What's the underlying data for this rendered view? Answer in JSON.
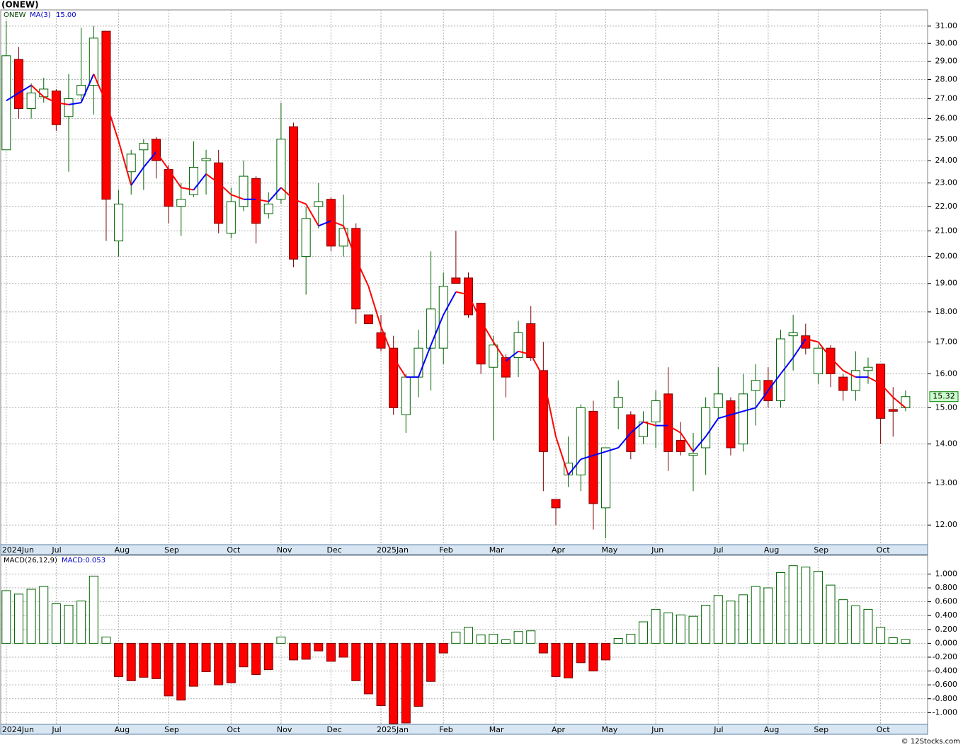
{
  "chart_data": [
    {
      "type": "candlestick",
      "title": "(ONEW)",
      "symbol": "ONEW",
      "categories": [
        "2024Jun",
        null,
        null,
        null,
        "Jul",
        null,
        null,
        null,
        null,
        "Aug",
        null,
        null,
        null,
        "Sep",
        null,
        null,
        null,
        null,
        "Oct",
        null,
        null,
        null,
        "Nov",
        null,
        null,
        null,
        "Dec",
        null,
        null,
        null,
        "2025Jan",
        null,
        null,
        null,
        null,
        "Feb",
        null,
        null,
        null,
        "Mar",
        null,
        null,
        null,
        null,
        "Apr",
        null,
        null,
        null,
        "May",
        null,
        null,
        null,
        "Jun",
        null,
        null,
        null,
        null,
        "Jul",
        null,
        null,
        null,
        "Aug",
        null,
        null,
        null,
        "Sep",
        null,
        null,
        null,
        null,
        "Oct",
        null,
        null
      ],
      "open": [
        24.5,
        29.1,
        26.5,
        27.1,
        27.4,
        26.1,
        27.2,
        27.7,
        30.7,
        20.6,
        23.5,
        24.5,
        25.0,
        23.6,
        22.0,
        22.5,
        24.0,
        23.9,
        20.9,
        22.0,
        23.2,
        21.7,
        22.3,
        25.6,
        20.0,
        22.0,
        22.3,
        20.4,
        21.1,
        17.9,
        17.3,
        16.8,
        14.8,
        15.9,
        16.8,
        16.8,
        19.2,
        19.2,
        18.3,
        16.2,
        16.5,
        16.5,
        17.6,
        16.1,
        12.6,
        13.2,
        13.2,
        14.9,
        12.4,
        15.0,
        14.8,
        14.2,
        14.6,
        15.4,
        14.1,
        13.7,
        13.9,
        15.0,
        15.2,
        14.0,
        15.5,
        15.8,
        15.2,
        17.2,
        17.2,
        16.0,
        16.8,
        15.9,
        15.5,
        16.1,
        16.3,
        14.95,
        15.0
      ],
      "high": [
        31.3,
        29.8,
        27.8,
        28.1,
        27.5,
        28.3,
        30.9,
        31.0,
        30.7,
        22.7,
        24.5,
        25.0,
        25.1,
        23.8,
        23.0,
        24.9,
        24.5,
        24.5,
        22.8,
        24.0,
        23.3,
        22.6,
        26.8,
        25.8,
        22.0,
        23.0,
        22.4,
        22.5,
        21.3,
        17.9,
        17.9,
        17.2,
        16.0,
        17.4,
        20.2,
        19.4,
        21.0,
        19.4,
        18.3,
        17.2,
        16.6,
        17.7,
        18.2,
        17.0,
        12.6,
        14.2,
        15.1,
        15.2,
        13.9,
        15.8,
        14.9,
        14.9,
        15.5,
        16.2,
        14.6,
        14.3,
        15.3,
        16.2,
        15.3,
        16.0,
        16.3,
        16.2,
        17.4,
        17.9,
        17.6,
        16.9,
        16.9,
        16.0,
        16.7,
        16.5,
        16.3,
        15.6,
        15.5
      ],
      "low": [
        24.5,
        26.0,
        26.0,
        26.8,
        25.4,
        23.5,
        26.9,
        26.2,
        20.6,
        20.0,
        22.5,
        22.7,
        23.2,
        21.3,
        20.8,
        22.4,
        22.5,
        20.9,
        20.7,
        21.8,
        20.5,
        21.5,
        22.1,
        19.6,
        18.6,
        21.1,
        20.2,
        20.0,
        17.6,
        17.6,
        16.7,
        14.8,
        14.3,
        15.3,
        15.5,
        16.3,
        19.0,
        17.8,
        16.0,
        14.1,
        15.3,
        15.9,
        16.4,
        12.8,
        12.0,
        12.9,
        12.8,
        11.9,
        11.7,
        14.4,
        13.6,
        14.0,
        13.9,
        13.3,
        13.7,
        12.8,
        13.2,
        14.7,
        13.7,
        13.8,
        14.5,
        15.0,
        15.0,
        16.1,
        16.6,
        15.7,
        15.6,
        15.2,
        15.2,
        15.7,
        14.0,
        14.2,
        14.9
      ],
      "close": [
        29.3,
        26.5,
        27.3,
        27.5,
        25.7,
        27.0,
        27.7,
        30.3,
        22.3,
        22.1,
        24.3,
        24.8,
        24.0,
        22.0,
        22.3,
        23.7,
        24.1,
        21.3,
        22.2,
        23.3,
        21.3,
        22.1,
        25.0,
        19.9,
        21.5,
        22.2,
        20.4,
        21.1,
        18.1,
        17.6,
        16.8,
        15.0,
        15.9,
        16.8,
        18.1,
        18.9,
        19.0,
        17.9,
        16.3,
        16.9,
        15.9,
        17.3,
        16.5,
        13.8,
        12.4,
        13.5,
        15.0,
        12.5,
        13.9,
        15.3,
        13.8,
        14.6,
        15.2,
        13.8,
        13.8,
        13.75,
        15.0,
        15.4,
        13.9,
        15.4,
        15.8,
        15.2,
        17.1,
        17.3,
        16.8,
        16.8,
        16.0,
        15.5,
        16.1,
        16.2,
        14.7,
        14.9,
        15.32
      ],
      "last_close_label": "15.32",
      "up_color": "#ffffff",
      "up_edge": "#006400",
      "down_color": "#ff0000",
      "down_edge": "#7a0000",
      "series": [
        {
          "name": "MA(3)",
          "last_value_label": "15.00",
          "up_color": "#0000ff",
          "down_color": "#ff0000",
          "values": [
            26.9,
            27.3,
            27.7,
            27.1,
            26.8,
            26.7,
            26.8,
            28.3,
            26.8,
            24.9,
            22.9,
            23.7,
            24.4,
            23.6,
            22.8,
            22.7,
            23.4,
            23.0,
            22.5,
            22.3,
            22.3,
            22.2,
            22.8,
            22.3,
            22.1,
            21.2,
            21.4,
            21.2,
            19.9,
            18.9,
            17.5,
            16.5,
            15.9,
            15.9,
            16.9,
            17.9,
            18.7,
            18.6,
            17.7,
            17.0,
            16.4,
            16.7,
            16.6,
            15.9,
            14.2,
            13.2,
            13.6,
            13.7,
            13.8,
            13.9,
            14.3,
            14.6,
            14.5,
            14.5,
            14.3,
            13.8,
            14.2,
            14.7,
            14.8,
            14.9,
            15.0,
            15.5,
            16.0,
            16.5,
            17.1,
            17.0,
            16.5,
            16.1,
            15.9,
            15.9,
            15.7,
            15.3,
            15.0
          ]
        }
      ],
      "ylog": true,
      "ylim": [
        11.56,
        31.97
      ],
      "yticks": [
        {
          "value": 12,
          "label": "12.00"
        },
        {
          "value": 13,
          "label": "13.00"
        },
        {
          "value": 14,
          "label": "14.00"
        },
        {
          "value": 15,
          "label": "15.00"
        },
        {
          "value": 16,
          "label": "16.00"
        },
        {
          "value": 17,
          "label": "17.00"
        },
        {
          "value": 18,
          "label": "18.00"
        },
        {
          "value": 19,
          "label": "19.00"
        },
        {
          "value": 20,
          "label": "20.00"
        },
        {
          "value": 21,
          "label": "21.00"
        },
        {
          "value": 22,
          "label": "22.00"
        },
        {
          "value": 23,
          "label": "23.00"
        },
        {
          "value": 24,
          "label": "24.00"
        },
        {
          "value": 25,
          "label": "25.00"
        },
        {
          "value": 26,
          "label": "26.00"
        },
        {
          "value": 27,
          "label": "27.00"
        },
        {
          "value": 28,
          "label": "28.00"
        },
        {
          "value": 29,
          "label": "29.00"
        },
        {
          "value": 30,
          "label": "30.00"
        },
        {
          "value": 31,
          "label": "31.00"
        }
      ],
      "grid": true
    },
    {
      "type": "histogram",
      "title": "MACD(26,12,9)",
      "value_label": "MACD:0.053",
      "pos_color": "#ffffff",
      "pos_edge": "#006400",
      "neg_color": "#ff0000",
      "neg_edge": "#7a0000",
      "values": [
        0.76,
        0.71,
        0.78,
        0.82,
        0.57,
        0.55,
        0.61,
        0.97,
        0.09,
        -0.48,
        -0.54,
        -0.49,
        -0.51,
        -0.76,
        -0.82,
        -0.62,
        -0.41,
        -0.6,
        -0.57,
        -0.34,
        -0.45,
        -0.38,
        0.09,
        -0.24,
        -0.23,
        -0.11,
        -0.26,
        -0.2,
        -0.54,
        -0.73,
        -0.9,
        -1.16,
        -1.15,
        -0.91,
        -0.55,
        -0.14,
        0.16,
        0.23,
        0.12,
        0.13,
        0.05,
        0.17,
        0.18,
        -0.14,
        -0.48,
        -0.5,
        -0.28,
        -0.4,
        -0.24,
        0.07,
        0.13,
        0.31,
        0.49,
        0.44,
        0.41,
        0.39,
        0.55,
        0.69,
        0.61,
        0.7,
        0.82,
        0.8,
        1.02,
        1.12,
        1.1,
        1.04,
        0.84,
        0.63,
        0.54,
        0.49,
        0.23,
        0.08,
        0.053
      ],
      "ylim": [
        -1.17,
        1.27
      ],
      "yticks": [
        {
          "value": -1.0,
          "label": "-1.000"
        },
        {
          "value": -0.8,
          "label": "-0.800"
        },
        {
          "value": -0.6,
          "label": "-0.600"
        },
        {
          "value": -0.4,
          "label": "-0.400"
        },
        {
          "value": -0.2,
          "label": "-0.200"
        },
        {
          "value": 0,
          "label": "0.000"
        },
        {
          "value": 0.2,
          "label": "0.200"
        },
        {
          "value": 0.4,
          "label": "0.400"
        },
        {
          "value": 0.6,
          "label": "0.600"
        },
        {
          "value": 0.8,
          "label": "0.800"
        },
        {
          "value": 1.0,
          "label": "1.000"
        }
      ],
      "grid": true
    }
  ],
  "footer": "© 12Stocks.com"
}
